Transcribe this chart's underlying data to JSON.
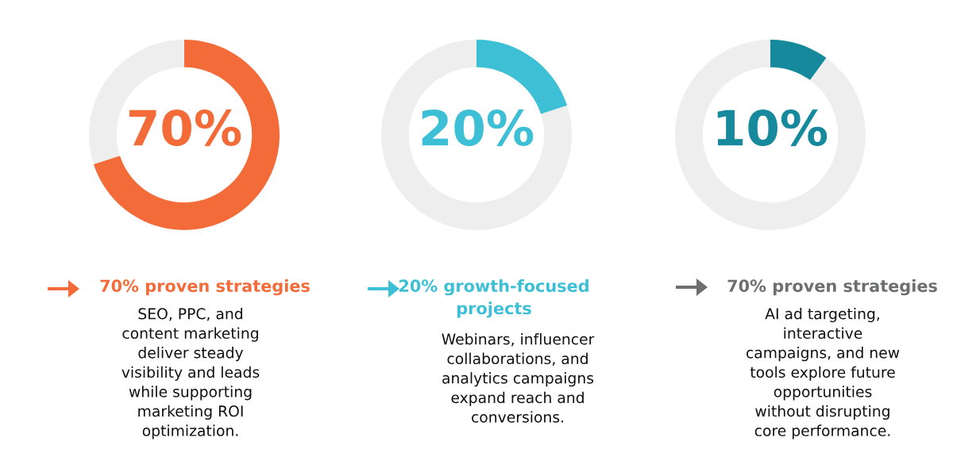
{
  "chart_data": [
    {
      "type": "donut",
      "categories": [
        null,
        null
      ],
      "values": [
        70,
        30
      ],
      "colors": [
        "#f26b38",
        "#eeeeee"
      ],
      "title": "70% proven strategies",
      "subtitle": "SEO, PPC, and\ncontent marketing\ndeliver steady\nvisibility and leads\nwhile supporting\nmarketing ROI\noptimization.",
      "annotations": [
        "70%"
      ]
    },
    {
      "type": "donut",
      "categories": [
        null,
        null
      ],
      "values": [
        20,
        80
      ],
      "colors": [
        "#3dbfd6",
        "#eeeeee"
      ],
      "title": "20% growth-focused\nprojects",
      "subtitle": "Webinars, influencer\ncollaborations, and\nanalytics campaigns\nexpand reach and\nconversions.",
      "annotations": [
        "20%"
      ]
    },
    {
      "type": "donut",
      "categories": [
        null,
        null
      ],
      "values": [
        10,
        90
      ],
      "colors": [
        "#168a9c",
        "#eeeeee"
      ],
      "title": "70% proven strategies",
      "subtitle": "AI ad targeting,\ninteractive\ncampaigns, and new\ntools explore future\nopportunities\nwithout disrupting\ncore performance.",
      "annotations": [
        "10%"
      ]
    }
  ]
}
